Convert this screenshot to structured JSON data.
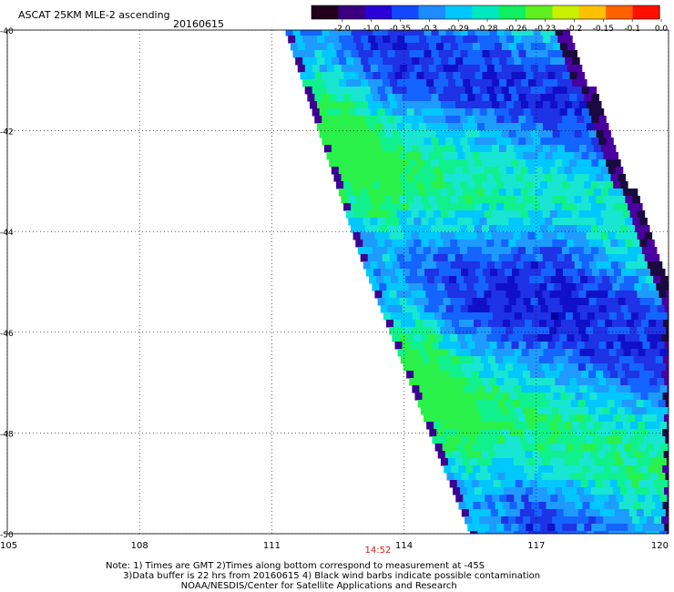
{
  "header": {
    "title": "ASCAT 25KM MLE-2 ascending",
    "date": "20160615"
  },
  "colorbar": {
    "labels": [
      "-2.0",
      "-1.0",
      "-0.35",
      "-0.3",
      "-0.29",
      "-0.28",
      "-0.26",
      "-0.23",
      "-0.2",
      "-0.15",
      "-0.1",
      "0.0"
    ],
    "colors": [
      "#20001a",
      "#3a0080",
      "#2a00d8",
      "#1448ff",
      "#1e8cff",
      "#00c8ff",
      "#00e8c0",
      "#10f060",
      "#60f020",
      "#c8f000",
      "#ffc000",
      "#ff6000",
      "#ff1000"
    ]
  },
  "axes": {
    "x_ticks": [
      "105",
      "108",
      "111",
      "114",
      "117",
      "120"
    ],
    "y_ticks": [
      "-40",
      "-42",
      "-44",
      "-46",
      "-48",
      "-50"
    ],
    "lon_range": [
      105,
      120
    ],
    "lat_range": [
      -40,
      -50
    ]
  },
  "time_label": "14:52",
  "time_label_lon": 113.4,
  "time_color": "#cc2020",
  "swath": {
    "left_edge": [
      [
        111.3,
        -40
      ],
      [
        113.0,
        -44.5
      ],
      [
        114.8,
        -48.5
      ],
      [
        115.5,
        -50
      ]
    ],
    "right_edge": [
      [
        117.5,
        -40
      ],
      [
        120,
        -45.5
      ],
      [
        120,
        -50
      ]
    ]
  },
  "note": {
    "line1": "Note: 1) Times are GMT 2)Times along bottom correspond to measurement at -45S",
    "line2": "      3)Data buffer is 22 hrs from 20160615 4) Black wind barbs indicate possible contamination",
    "line3": "                          NOAA/NESDIS/Center for Satellite Applications and Research"
  }
}
